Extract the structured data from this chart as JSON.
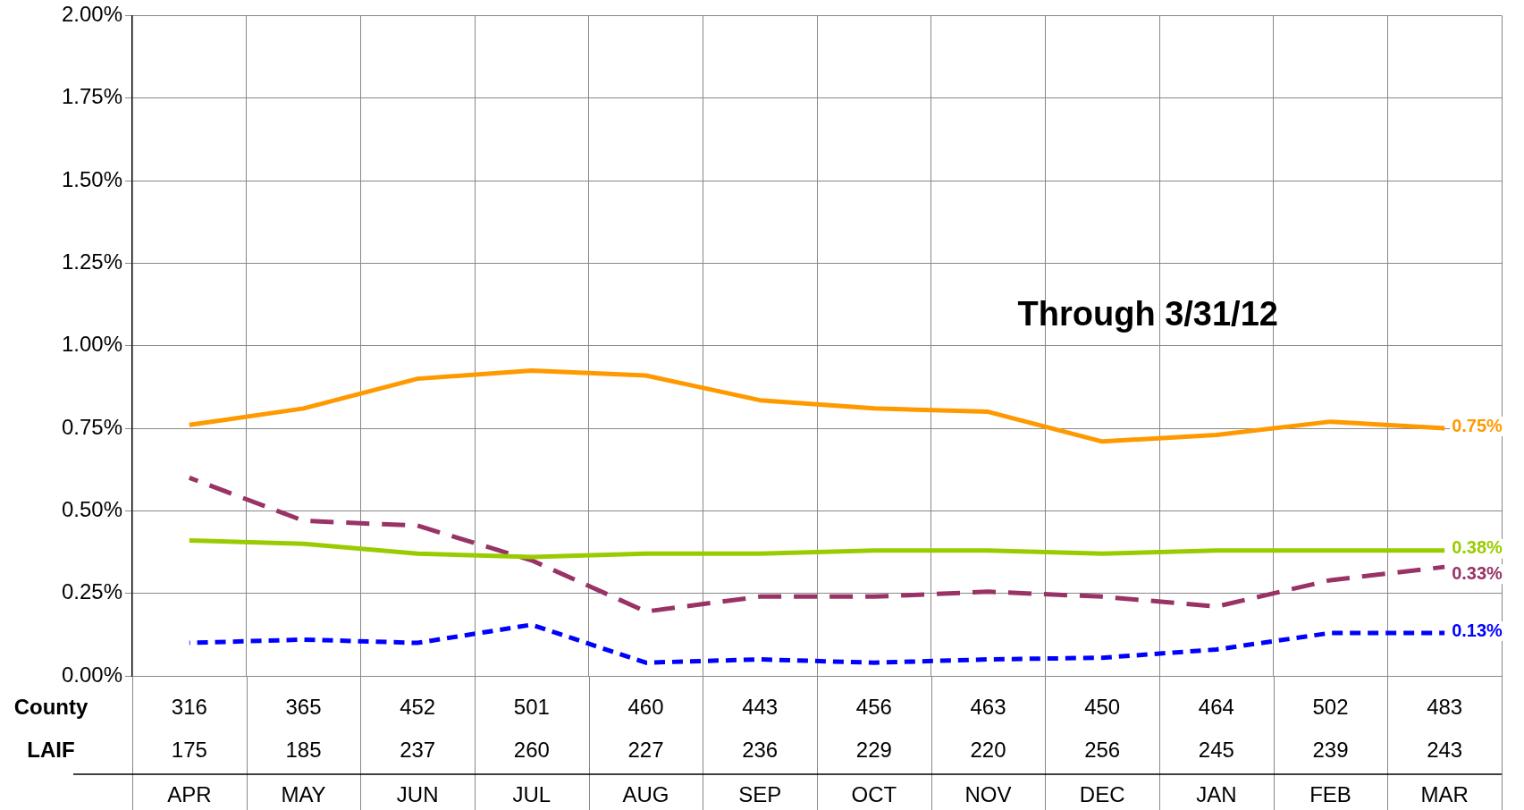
{
  "chart_data": {
    "type": "line",
    "categories": [
      "APR",
      "MAY",
      "JUN",
      "JUL",
      "AUG",
      "SEP",
      "OCT",
      "NOV",
      "DEC",
      "JAN",
      "FEB",
      "MAR"
    ],
    "series": [
      {
        "color": "#ff9900",
        "line_style": "solid",
        "values": [
          0.76,
          0.81,
          0.9,
          0.925,
          0.91,
          0.835,
          0.81,
          0.8,
          0.71,
          0.73,
          0.77,
          0.75
        ],
        "value_labels": [
          null,
          null,
          null,
          null,
          null,
          null,
          null,
          null,
          null,
          null,
          null,
          "0.75%"
        ]
      },
      {
        "color": "#99cc00",
        "line_style": "solid",
        "values": [
          0.41,
          0.4,
          0.37,
          0.36,
          0.37,
          0.37,
          0.38,
          0.38,
          0.37,
          0.38,
          0.38,
          0.38
        ],
        "value_labels": [
          null,
          null,
          null,
          null,
          null,
          null,
          null,
          null,
          null,
          null,
          null,
          "0.38%"
        ]
      },
      {
        "color": "#993366",
        "line_style": "dashed",
        "values": [
          0.6,
          0.47,
          0.455,
          0.35,
          0.195,
          0.24,
          0.24,
          0.255,
          0.24,
          0.21,
          0.29,
          0.33
        ],
        "value_labels": [
          null,
          null,
          null,
          null,
          null,
          null,
          null,
          null,
          null,
          null,
          null,
          "0.33%"
        ]
      },
      {
        "color": "#0000ff",
        "line_style": "dotted",
        "values": [
          0.1,
          0.11,
          0.1,
          0.155,
          0.04,
          0.05,
          0.04,
          0.05,
          0.055,
          0.08,
          0.13,
          0.13
        ],
        "value_labels": [
          null,
          null,
          null,
          null,
          null,
          null,
          null,
          null,
          null,
          null,
          null,
          "0.13%"
        ]
      }
    ],
    "ylim": [
      0,
      2
    ],
    "yticks": [
      {
        "value": 0,
        "label": "0.00%"
      },
      {
        "value": 0.25,
        "label": "0.25%"
      },
      {
        "value": 0.5,
        "label": "0.50%"
      },
      {
        "value": 0.75,
        "label": "0.75%"
      },
      {
        "value": 1,
        "label": "1.00%"
      },
      {
        "value": 1.25,
        "label": "1.25%"
      },
      {
        "value": 1.5,
        "label": "1.50%"
      },
      {
        "value": 1.75,
        "label": "1.75%"
      },
      {
        "value": 2,
        "label": "2.00%"
      }
    ],
    "grid": true,
    "legend": false,
    "marker": "none",
    "annotations": [
      "Through 3/31/12",
      "County",
      "316",
      "365",
      "452",
      "501",
      "460",
      "443",
      "456",
      "463",
      "450",
      "464",
      "502",
      "483",
      "LAIF",
      "175",
      "185",
      "237",
      "260",
      "227",
      "236",
      "229",
      "220",
      "256",
      "245",
      "239",
      "243"
    ]
  }
}
